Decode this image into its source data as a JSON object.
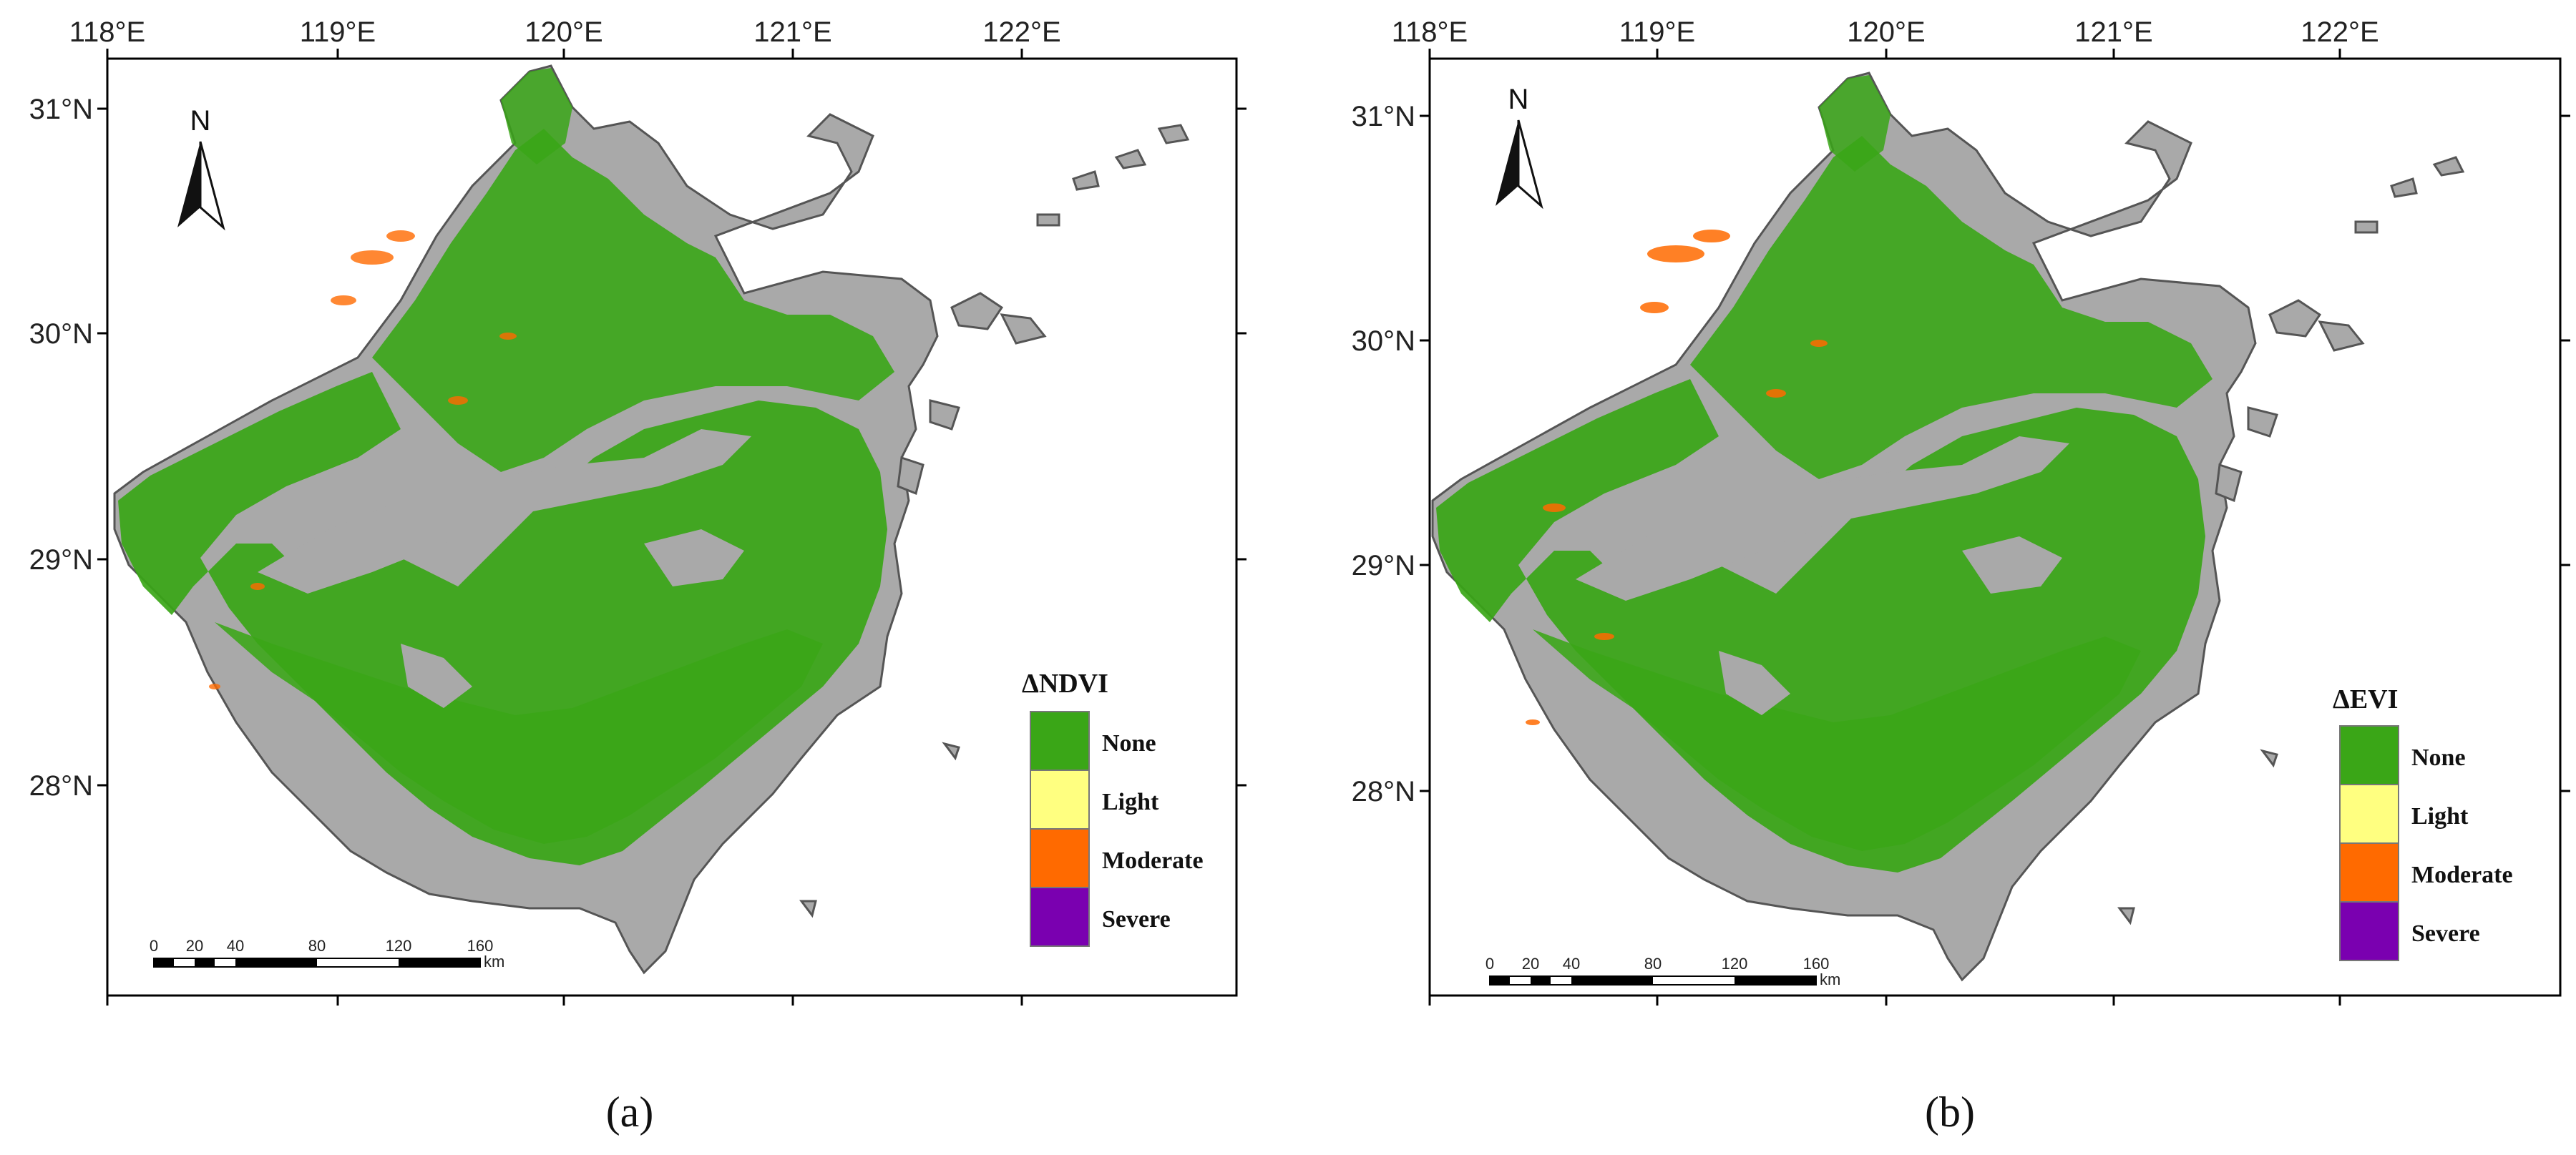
{
  "panels": [
    {
      "id": "a",
      "caption": "(a)",
      "legend": {
        "title": "ΔNDVI",
        "items": [
          {
            "label": "None",
            "color": "#3aa617"
          },
          {
            "label": "Light",
            "color": "#ffff80"
          },
          {
            "label": "Moderate",
            "color": "#ff6a00"
          },
          {
            "label": "Severe",
            "color": "#7a00b0"
          }
        ]
      }
    },
    {
      "id": "b",
      "caption": "(b)",
      "legend": {
        "title": "ΔEVI",
        "items": [
          {
            "label": "None",
            "color": "#3aa617"
          },
          {
            "label": "Light",
            "color": "#ffff80"
          },
          {
            "label": "Moderate",
            "color": "#ff6a00"
          },
          {
            "label": "Severe",
            "color": "#7a00b0"
          }
        ]
      }
    }
  ],
  "lon_labels": [
    "118°E",
    "119°E",
    "120°E",
    "121°E",
    "122°E"
  ],
  "lat_labels": [
    "31°N",
    "30°N",
    "29°N",
    "28°N"
  ],
  "north_arrow_label": "N",
  "scale_bar": {
    "ticks": [
      "0",
      "20",
      "40",
      "80",
      "120",
      "160"
    ],
    "unit": "km"
  },
  "colors": {
    "background_land": "#a9a9a9",
    "coast_outline": "#555555",
    "vegetation": "#3aa617",
    "frame": "#000000"
  }
}
